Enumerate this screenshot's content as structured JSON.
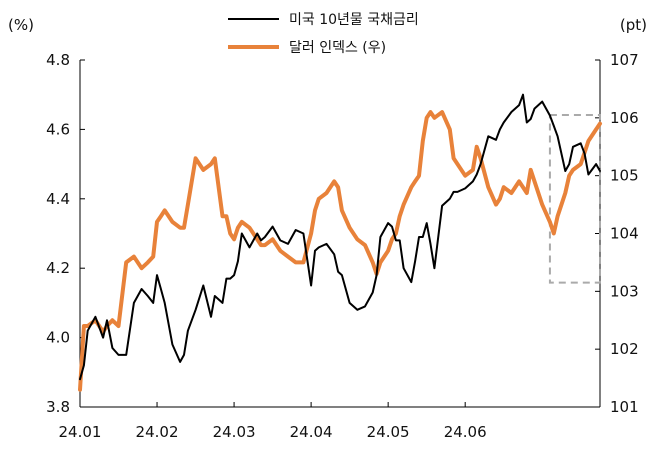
{
  "chart_data": {
    "type": "line",
    "title": "",
    "y_left": {
      "unit": "(%)",
      "range": [
        3.8,
        4.8
      ],
      "ticks": [
        "4.8",
        "4.6",
        "4.4",
        "4.2",
        "4.0",
        "3.8"
      ]
    },
    "y_right": {
      "unit": "(pt)",
      "range": [
        101,
        107
      ],
      "ticks": [
        "107",
        "106",
        "105",
        "104",
        "103",
        "102",
        "101"
      ]
    },
    "x_axis": {
      "range": [
        0,
        6.75
      ],
      "ticks": [
        "24.01",
        "24.02",
        "24.03",
        "24.04",
        "24.05",
        "24.06"
      ]
    },
    "grid": false,
    "legend": {
      "placement": "top-center"
    },
    "highlight_box": {
      "x_range": [
        6.1,
        6.75
      ],
      "y_right_range": [
        103.15,
        106.05
      ],
      "style": "dashed",
      "color": "#aaaaaa"
    },
    "series": [
      {
        "name": "미국 10년물 국채금리",
        "axis": "left",
        "color": "#000000",
        "x": [
          0.0,
          0.05,
          0.1,
          0.2,
          0.3,
          0.35,
          0.42,
          0.5,
          0.6,
          0.7,
          0.8,
          0.88,
          0.95,
          1.0,
          1.05,
          1.1,
          1.2,
          1.3,
          1.35,
          1.4,
          1.5,
          1.6,
          1.7,
          1.75,
          1.85,
          1.9,
          1.95,
          2.0,
          2.05,
          2.1,
          2.2,
          2.3,
          2.35,
          2.4,
          2.5,
          2.6,
          2.7,
          2.8,
          2.9,
          3.0,
          3.05,
          3.1,
          3.2,
          3.3,
          3.35,
          3.4,
          3.5,
          3.6,
          3.7,
          3.8,
          3.85,
          3.9,
          4.0,
          4.05,
          4.1,
          4.15,
          4.2,
          4.3,
          4.35,
          4.4,
          4.45,
          4.5,
          4.55,
          4.6,
          4.7,
          4.8,
          4.85,
          4.9,
          5.0,
          5.1,
          5.15,
          5.2,
          5.3,
          5.4,
          5.45,
          5.5,
          5.6,
          5.7,
          5.75,
          5.8,
          5.85,
          5.9,
          6.0,
          6.1,
          6.15,
          6.2,
          6.3,
          6.35,
          6.4,
          6.5,
          6.55,
          6.6,
          6.7,
          6.75
        ],
        "values": [
          3.88,
          3.92,
          4.02,
          4.06,
          4.0,
          4.05,
          3.97,
          3.95,
          3.95,
          4.1,
          4.14,
          4.12,
          4.1,
          4.18,
          4.14,
          4.1,
          3.98,
          3.93,
          3.95,
          4.02,
          4.08,
          4.15,
          4.06,
          4.12,
          4.1,
          4.17,
          4.17,
          4.18,
          4.22,
          4.3,
          4.26,
          4.3,
          4.28,
          4.29,
          4.32,
          4.28,
          4.27,
          4.31,
          4.3,
          4.15,
          4.25,
          4.26,
          4.27,
          4.24,
          4.19,
          4.18,
          4.1,
          4.08,
          4.09,
          4.13,
          4.18,
          4.29,
          4.33,
          4.32,
          4.28,
          4.28,
          4.2,
          4.16,
          4.22,
          4.29,
          4.29,
          4.33,
          4.27,
          4.2,
          4.38,
          4.4,
          4.42,
          4.42,
          4.43,
          4.45,
          4.47,
          4.5,
          4.58,
          4.57,
          4.6,
          4.62,
          4.65,
          4.67,
          4.7,
          4.62,
          4.63,
          4.66,
          4.68,
          4.64,
          4.61,
          4.58,
          4.48,
          4.5,
          4.55,
          4.56,
          4.53,
          4.47,
          4.5,
          4.48
        ]
      },
      {
        "name": "달러 인덱스 (우)",
        "axis": "right",
        "color": "#e8823a",
        "x": [
          0.0,
          0.05,
          0.1,
          0.2,
          0.3,
          0.35,
          0.42,
          0.5,
          0.6,
          0.7,
          0.8,
          0.88,
          0.95,
          1.0,
          1.05,
          1.1,
          1.2,
          1.3,
          1.35,
          1.4,
          1.5,
          1.6,
          1.7,
          1.75,
          1.85,
          1.9,
          1.95,
          2.0,
          2.05,
          2.1,
          2.2,
          2.3,
          2.35,
          2.4,
          2.5,
          2.6,
          2.7,
          2.8,
          2.9,
          3.0,
          3.05,
          3.1,
          3.2,
          3.3,
          3.35,
          3.4,
          3.5,
          3.6,
          3.7,
          3.8,
          3.85,
          3.9,
          4.0,
          4.05,
          4.1,
          4.15,
          4.2,
          4.3,
          4.35,
          4.4,
          4.45,
          4.5,
          4.55,
          4.6,
          4.7,
          4.8,
          4.85,
          4.9,
          5.0,
          5.1,
          5.15,
          5.2,
          5.3,
          5.4,
          5.45,
          5.5,
          5.6,
          5.7,
          5.75,
          5.8,
          5.85,
          5.9,
          6.0,
          6.1,
          6.15,
          6.2,
          6.3,
          6.35,
          6.4,
          6.5,
          6.55,
          6.6,
          6.7,
          6.75
        ],
        "values": [
          101.3,
          102.4,
          102.4,
          102.5,
          102.3,
          102.4,
          102.5,
          102.4,
          103.5,
          103.6,
          103.4,
          103.5,
          103.6,
          104.2,
          104.3,
          104.4,
          104.2,
          104.1,
          104.1,
          104.5,
          105.3,
          105.1,
          105.2,
          105.3,
          104.3,
          104.3,
          104.0,
          103.9,
          104.1,
          104.2,
          104.1,
          103.9,
          103.8,
          103.8,
          103.9,
          103.7,
          103.6,
          103.5,
          103.5,
          104.0,
          104.4,
          104.6,
          104.7,
          104.9,
          104.8,
          104.4,
          104.1,
          103.9,
          103.8,
          103.5,
          103.3,
          103.5,
          103.7,
          103.9,
          104.0,
          104.3,
          104.5,
          104.8,
          104.9,
          105.0,
          105.6,
          106.0,
          106.1,
          106.0,
          106.1,
          105.8,
          105.3,
          105.2,
          105.0,
          105.1,
          105.5,
          105.3,
          104.8,
          104.5,
          104.6,
          104.8,
          104.7,
          104.9,
          104.8,
          104.7,
          105.1,
          104.9,
          104.5,
          104.2,
          104.0,
          104.3,
          104.7,
          105.0,
          105.1,
          105.2,
          105.4,
          105.6,
          105.8,
          105.9
        ]
      }
    ]
  }
}
